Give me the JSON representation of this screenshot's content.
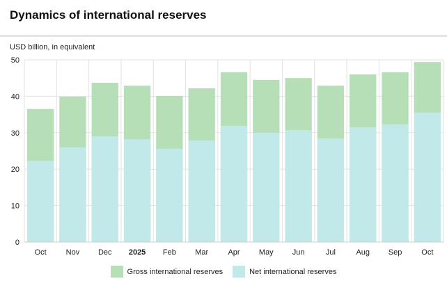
{
  "title": "Dynamics of international reserves",
  "chart_data": {
    "type": "bar",
    "title": "Dynamics of international reserves",
    "ylabel": "USD billion, in equivalent",
    "xlabel": "",
    "ylim": [
      0,
      50
    ],
    "yticks": [
      "0",
      "10",
      "20",
      "30",
      "40",
      "50"
    ],
    "grid": true,
    "legend_position": "bottom",
    "categories": [
      "Oct",
      "Nov",
      "Dec",
      "2025",
      "Feb",
      "Mar",
      "Apr",
      "May",
      "Jun",
      "Jul",
      "Aug",
      "Sep",
      "Oct"
    ],
    "bold_categories": [
      "2025"
    ],
    "series": [
      {
        "name": "Gross international reserves",
        "color": "#b6dfb7",
        "values": [
          36.5,
          39.9,
          43.7,
          42.9,
          40.1,
          42.2,
          46.6,
          44.5,
          45.0,
          42.9,
          46.0,
          46.6,
          49.4
        ]
      },
      {
        "name": "Net international reserves",
        "color": "#c2e9e9",
        "values": [
          22.3,
          26.0,
          29.0,
          28.2,
          25.6,
          27.9,
          31.9,
          30.0,
          30.7,
          28.4,
          31.5,
          32.3,
          35.5
        ]
      }
    ]
  }
}
